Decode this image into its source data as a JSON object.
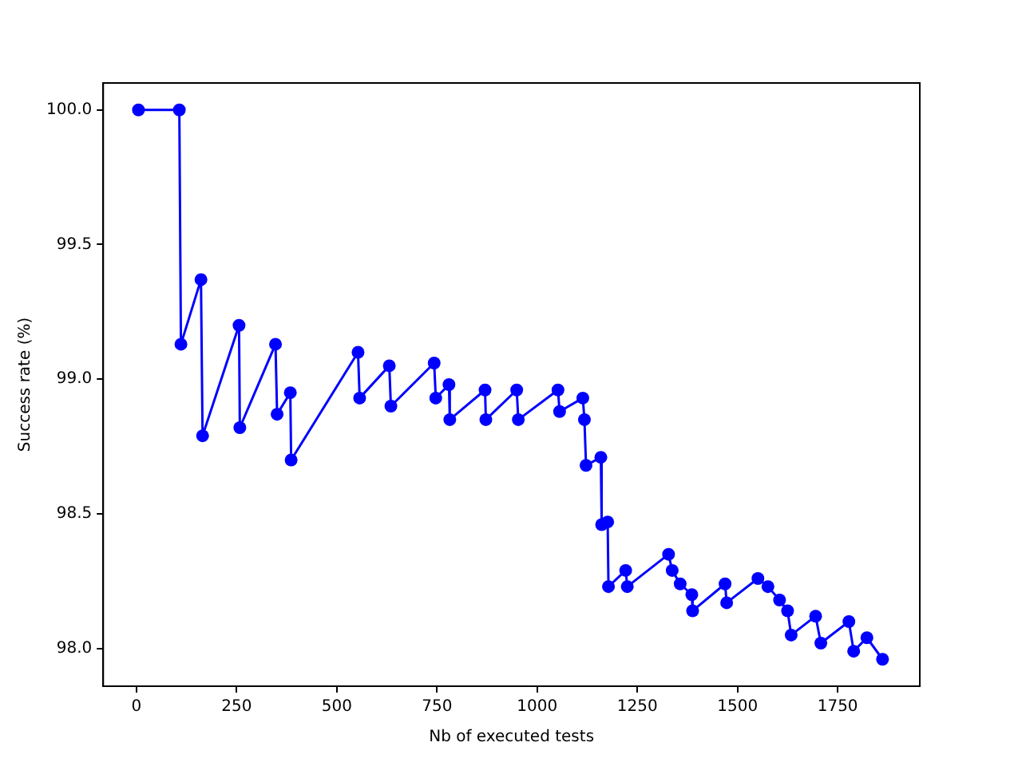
{
  "chart_data": {
    "type": "line",
    "xlabel": "Nb of executed tests",
    "ylabel": "Success rate (%)",
    "marker": "circle",
    "line_style": "solid",
    "grid": false,
    "legend": false,
    "xlim": [
      -83,
      1955
    ],
    "ylim": [
      97.86,
      100.1
    ],
    "xticks": [
      0,
      250,
      500,
      750,
      1000,
      1250,
      1500,
      1750
    ],
    "yticks": [
      {
        "value": 98,
        "label": "98.0"
      },
      {
        "value": 98.5,
        "label": "98.5"
      },
      {
        "value": 99,
        "label": "99.0"
      },
      {
        "value": 99.5,
        "label": "99.5"
      },
      {
        "value": 100,
        "label": "100.0"
      }
    ],
    "series": [
      {
        "color": "#0000ff",
        "x": [
          5,
          107,
          111,
          161,
          165,
          256,
          258,
          347,
          351,
          384,
          386,
          553,
          557,
          631,
          635,
          743,
          747,
          780,
          782,
          870,
          872,
          949,
          953,
          1052,
          1056,
          1114,
          1118,
          1122,
          1159,
          1161,
          1176,
          1178,
          1221,
          1225,
          1328,
          1337,
          1357,
          1386,
          1388,
          1469,
          1473,
          1551,
          1576,
          1605,
          1625,
          1634,
          1695,
          1708,
          1778,
          1790,
          1823,
          1862
        ],
        "values": [
          100,
          100,
          99.13,
          99.37,
          98.79,
          99.2,
          98.82,
          99.13,
          98.87,
          98.95,
          98.7,
          99.1,
          98.93,
          99.05,
          98.9,
          99.06,
          98.93,
          98.98,
          98.85,
          98.96,
          98.85,
          98.96,
          98.85,
          98.96,
          98.88,
          98.93,
          98.85,
          98.68,
          98.71,
          98.46,
          98.47,
          98.23,
          98.29,
          98.23,
          98.35,
          98.29,
          98.24,
          98.2,
          98.14,
          98.24,
          98.17,
          98.26,
          98.23,
          98.18,
          98.14,
          98.05,
          98.12,
          98.02,
          98.1,
          97.99,
          98.04,
          97.96
        ]
      }
    ]
  }
}
